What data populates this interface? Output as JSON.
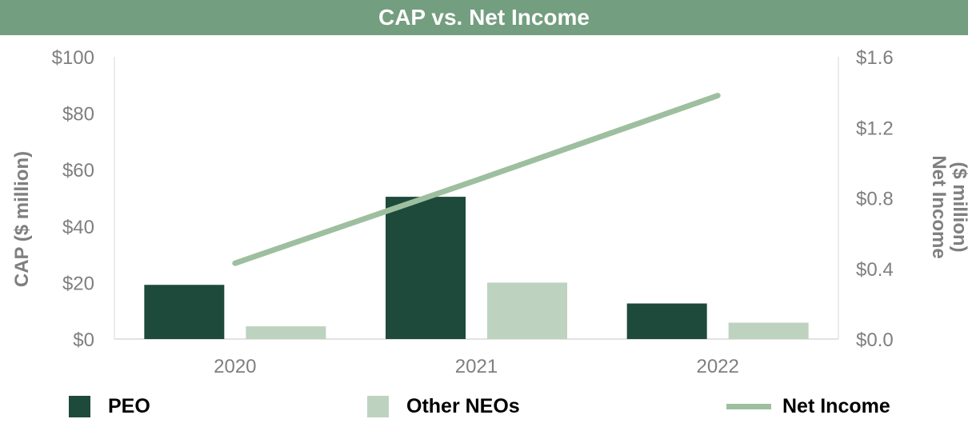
{
  "chart_data": {
    "type": "bar",
    "title": "CAP vs. Net Income",
    "categories": [
      "2020",
      "2021",
      "2022"
    ],
    "series": [
      {
        "name": "PEO",
        "type": "bar",
        "axis": "left",
        "color": "#1e4a3b",
        "values": [
          19.2,
          50.4,
          12.6
        ]
      },
      {
        "name": "Other NEOs",
        "type": "bar",
        "axis": "left",
        "color": "#bdd3c0",
        "values": [
          4.5,
          20.0,
          5.8
        ]
      },
      {
        "name": "Net Income",
        "type": "line",
        "axis": "right",
        "color": "#9ebf9f",
        "values": [
          0.43,
          0.9,
          1.38
        ]
      }
    ],
    "ylabel": "CAP ($ million)",
    "y2label_line1": "Net Income",
    "y2label_line2": "($ million)",
    "ylim": [
      0,
      100
    ],
    "y2lim": [
      0,
      1.6
    ],
    "yticks": [
      "$0",
      "$20",
      "$40",
      "$60",
      "$80",
      "$100"
    ],
    "y2ticks": [
      "$0.0",
      "$0.4",
      "$0.8",
      "$1.2",
      "$1.6"
    ],
    "legend_position": "bottom"
  }
}
